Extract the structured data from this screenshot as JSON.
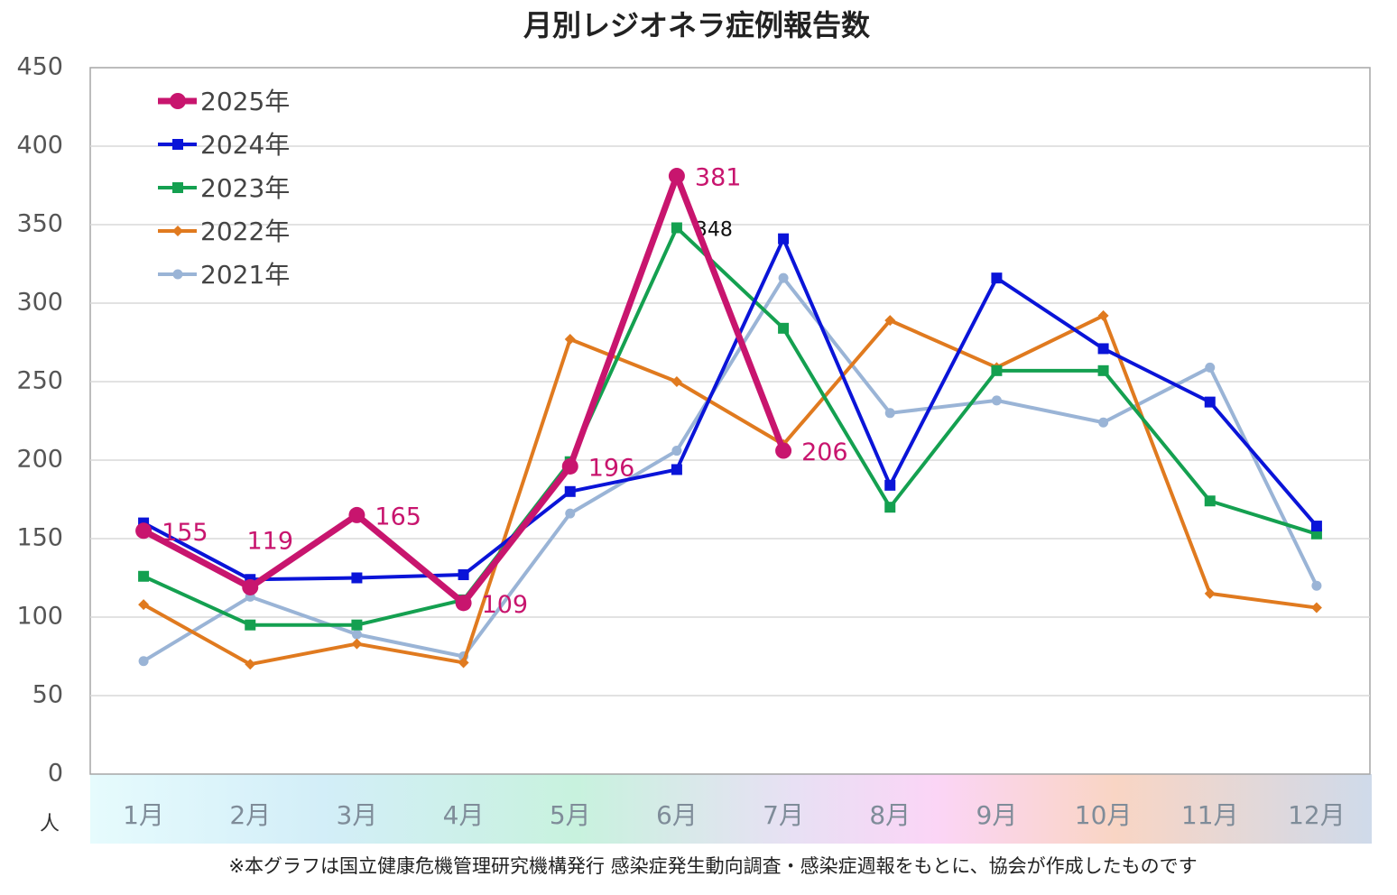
{
  "chart_data": {
    "type": "line",
    "title": "月別レジオネラ症例報告数",
    "y_unit": "人",
    "footnote": "※本グラフは国立健康危機管理研究機構発行 感染症発生動向調査・感染症週報をもとに、協会が作成したものです",
    "categories": [
      "1月",
      "2月",
      "3月",
      "4月",
      "5月",
      "6月",
      "7月",
      "8月",
      "9月",
      "10月",
      "11月",
      "12月"
    ],
    "ylim": [
      0,
      450
    ],
    "yticks": [
      0,
      50,
      100,
      150,
      200,
      250,
      300,
      350,
      400,
      450
    ],
    "grid": true,
    "legend": "upper left",
    "series": [
      {
        "name": "2025年",
        "color": "#c8156e",
        "marker": "circle",
        "values": [
          155,
          119,
          165,
          109,
          196,
          381,
          206,
          null,
          null,
          null,
          null,
          null
        ],
        "value_labels": [
          "155",
          "119",
          "165",
          "109",
          "196",
          "381",
          "206",
          null,
          null,
          null,
          null,
          null
        ]
      },
      {
        "name": "2024年",
        "color": "#0a14d8",
        "marker": "square",
        "values": [
          160,
          124,
          125,
          127,
          180,
          194,
          341,
          184,
          316,
          271,
          237,
          158
        ]
      },
      {
        "name": "2023年",
        "color": "#14a050",
        "marker": "square",
        "values": [
          126,
          95,
          95,
          111,
          199,
          348,
          284,
          170,
          257,
          257,
          174,
          153
        ],
        "value_labels": [
          null,
          null,
          null,
          null,
          null,
          "348",
          null,
          null,
          null,
          null,
          null,
          null
        ]
      },
      {
        "name": "2022年",
        "color": "#e07a1f",
        "marker": "diamond",
        "values": [
          108,
          70,
          83,
          71,
          277,
          250,
          210,
          289,
          259,
          292,
          115,
          106
        ]
      },
      {
        "name": "2021年",
        "color": "#9ab4d6",
        "marker": "circle-small",
        "values": [
          72,
          113,
          89,
          75,
          166,
          206,
          316,
          230,
          238,
          224,
          259,
          120
        ]
      }
    ]
  }
}
